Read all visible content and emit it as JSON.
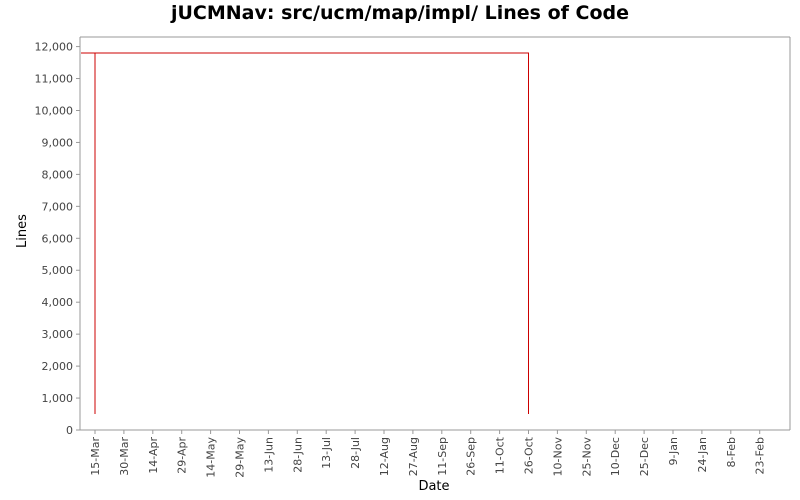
{
  "chart_data": {
    "type": "line",
    "title": "jUCMNav: src/ucm/map/impl/ Lines of Code",
    "xlabel": "Date",
    "ylabel": "Lines",
    "ylim": [
      0,
      12300
    ],
    "y_ticks": [
      0,
      1000,
      2000,
      3000,
      4000,
      5000,
      6000,
      7000,
      8000,
      9000,
      10000,
      11000,
      12000
    ],
    "y_tick_labels": [
      "0",
      "1,000",
      "2,000",
      "3,000",
      "4,000",
      "5,000",
      "6,000",
      "7,000",
      "8,000",
      "9,000",
      "10,000",
      "11,000",
      "12,000"
    ],
    "x_tick_labels": [
      "15-Mar",
      "30-Mar",
      "14-Apr",
      "29-Apr",
      "14-May",
      "29-May",
      "13-Jun",
      "28-Jun",
      "13-Jul",
      "28-Jul",
      "12-Aug",
      "27-Aug",
      "11-Sep",
      "26-Sep",
      "11-Oct",
      "26-Oct",
      "10-Nov",
      "25-Nov",
      "10-Dec",
      "25-Dec",
      "9-Jan",
      "24-Jan",
      "8-Feb",
      "23-Feb"
    ],
    "x_tick_interval_days": 15,
    "grid": false,
    "line_color": "#cc0000",
    "series": [
      {
        "points": [
          {
            "x": "15-Mar",
            "y": 500
          },
          {
            "x": "15-Mar",
            "y": 11800
          },
          {
            "x": "26-Oct",
            "y": 11800
          },
          {
            "x": "26-Oct",
            "y": 500
          },
          {
            "x": "26-Oct",
            "y": 11800
          },
          {
            "x": "7-Mar",
            "y": 11800
          }
        ]
      }
    ]
  }
}
